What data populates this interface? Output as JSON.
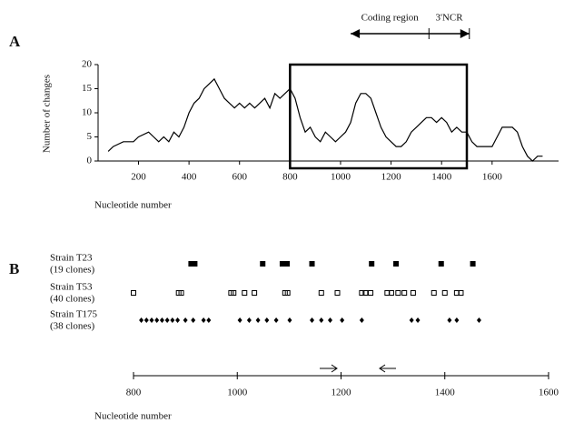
{
  "chart_data": [
    {
      "type": "line",
      "panel": "A",
      "ylabel": "Number of changes",
      "xlabel": "Nucleotide number",
      "x": [
        80,
        100,
        140,
        180,
        200,
        240,
        260,
        280,
        300,
        320,
        340,
        360,
        380,
        400,
        420,
        440,
        460,
        480,
        500,
        520,
        540,
        560,
        580,
        600,
        620,
        640,
        660,
        680,
        700,
        720,
        740,
        760,
        780,
        800,
        820,
        840,
        860,
        880,
        900,
        920,
        940,
        960,
        980,
        1000,
        1020,
        1040,
        1060,
        1080,
        1100,
        1120,
        1140,
        1160,
        1180,
        1200,
        1220,
        1240,
        1260,
        1280,
        1300,
        1320,
        1340,
        1360,
        1380,
        1400,
        1420,
        1440,
        1460,
        1480,
        1500,
        1520,
        1540,
        1560,
        1580,
        1600,
        1620,
        1640,
        1660,
        1680,
        1700,
        1720,
        1740,
        1760,
        1780,
        1800
      ],
      "values": [
        2,
        3,
        4,
        4,
        5,
        6,
        5,
        4,
        5,
        4,
        6,
        5,
        7,
        10,
        12,
        13,
        15,
        16,
        17,
        15,
        13,
        12,
        11,
        12,
        11,
        12,
        11,
        12,
        13,
        11,
        14,
        13,
        14,
        15,
        13,
        9,
        6,
        7,
        5,
        4,
        6,
        5,
        4,
        5,
        6,
        8,
        12,
        14,
        14,
        13,
        10,
        7,
        5,
        4,
        3,
        3,
        4,
        6,
        7,
        8,
        9,
        9,
        8,
        9,
        8,
        6,
        7,
        6,
        6,
        4,
        3,
        3,
        3,
        3,
        5,
        7,
        7,
        7,
        6,
        3,
        1,
        0,
        1,
        1
      ],
      "color": "#000000",
      "xlim": [
        40,
        1820
      ],
      "ylim": [
        0,
        20
      ],
      "xticks": [
        200,
        400,
        600,
        800,
        1000,
        1200,
        1400,
        1600
      ],
      "yticks": [
        0,
        5,
        10,
        15,
        20
      ],
      "highlight": [
        800,
        1500
      ],
      "regions": [
        {
          "label": "Coding region",
          "x": [
            1040,
            1350
          ]
        },
        {
          "label": "3'NCR",
          "x": [
            1350,
            1510
          ]
        }
      ]
    },
    {
      "type": "strip",
      "panel": "B",
      "xlabel": "Nucleotide number",
      "xlim": [
        800,
        1600
      ],
      "xticks": [
        800,
        1000,
        1200,
        1400,
        1600
      ],
      "series": [
        {
          "name": "Strain T23",
          "note": "(19 clones)",
          "marker": "filled-square",
          "color": "#000000",
          "values": [
            911,
            918,
            1049,
            1087,
            1096,
            1144,
            1259,
            1306,
            1393,
            1454
          ]
        },
        {
          "name": "Strain T53",
          "note": "(40 clones)",
          "marker": "open-square",
          "color": "#000000",
          "values": [
            800,
            887,
            892,
            988,
            993,
            1014,
            1033,
            1092,
            1097,
            1162,
            1193,
            1240,
            1247,
            1257,
            1289,
            1297,
            1310,
            1322,
            1339,
            1379,
            1400,
            1423,
            1431
          ]
        },
        {
          "name": "Strain T175",
          "note": "(38 clones)",
          "marker": "diamond",
          "color": "#000000",
          "values": [
            815,
            825,
            835,
            845,
            855,
            865,
            875,
            885,
            900,
            915,
            935,
            945,
            1005,
            1023,
            1040,
            1057,
            1075,
            1101,
            1144,
            1162,
            1179,
            1202,
            1240,
            1336,
            1348,
            1409,
            1423,
            1466
          ]
        }
      ]
    }
  ]
}
